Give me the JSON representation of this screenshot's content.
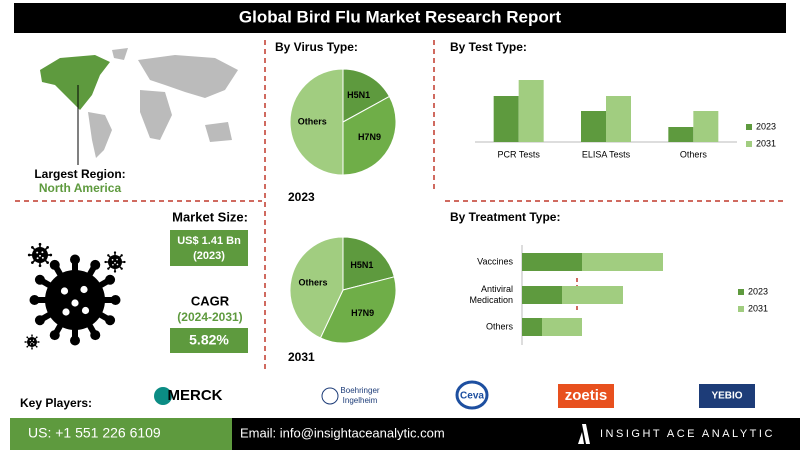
{
  "header": {
    "title": "Global Bird Flu Market Research Report"
  },
  "region": {
    "label": "Largest Region:",
    "value": "North America"
  },
  "market_size": {
    "label": "Market Size:",
    "value": "US$ 1.41 Bn",
    "year": "(2023)"
  },
  "cagr": {
    "label": "CAGR",
    "period": "(2024-2031)",
    "value": "5.82%"
  },
  "virus_type": {
    "title": "By Virus Type:",
    "charts": [
      {
        "type": "pie",
        "title": "2023",
        "categories": [
          "H5N1",
          "H7N9",
          "Others"
        ],
        "values": [
          17,
          33,
          50
        ],
        "colors": [
          "#5e9a3e",
          "#6fae48",
          "#a1cd80"
        ]
      },
      {
        "type": "pie",
        "title": "2031",
        "categories": [
          "H5N1",
          "H7N9",
          "Others"
        ],
        "values": [
          21,
          36,
          43
        ],
        "colors": [
          "#5e9a3e",
          "#6fae48",
          "#a1cd80"
        ]
      }
    ]
  },
  "test_type": {
    "title": "By  Test Type:",
    "chart": {
      "type": "bar",
      "categories": [
        "PCR Tests",
        "ELISA Tests",
        "Others"
      ],
      "series": [
        {
          "name": "2023",
          "color": "#5e9a3e",
          "values": [
            46,
            31,
            15
          ]
        },
        {
          "name": "2031",
          "color": "#a1cd80",
          "values": [
            62,
            46,
            31
          ]
        }
      ]
    }
  },
  "treatment_type": {
    "title": "By Treatment Type:",
    "chart": {
      "type": "hbar_stacked",
      "categories": [
        "Vaccines",
        [
          "Antiviral",
          "Medication"
        ],
        "Others"
      ],
      "series": [
        {
          "name": "2023",
          "color": "#5e9a3e",
          "values": [
            60,
            40,
            20
          ]
        },
        {
          "name": "2031",
          "color": "#a1cd80",
          "values": [
            81,
            61,
            40
          ]
        }
      ]
    }
  },
  "key_players": {
    "label": "Key Players:",
    "names": [
      "MERCK",
      [
        "Boehringer",
        "Ingelheim"
      ],
      "Ceva",
      "zoetis",
      "YEBIO"
    ]
  },
  "footer": {
    "phone": "US: +1 551 226 6109",
    "email": "Email: info@insightaceanalytic.com",
    "brand": "INSIGHT ACE ANALYTIC"
  }
}
